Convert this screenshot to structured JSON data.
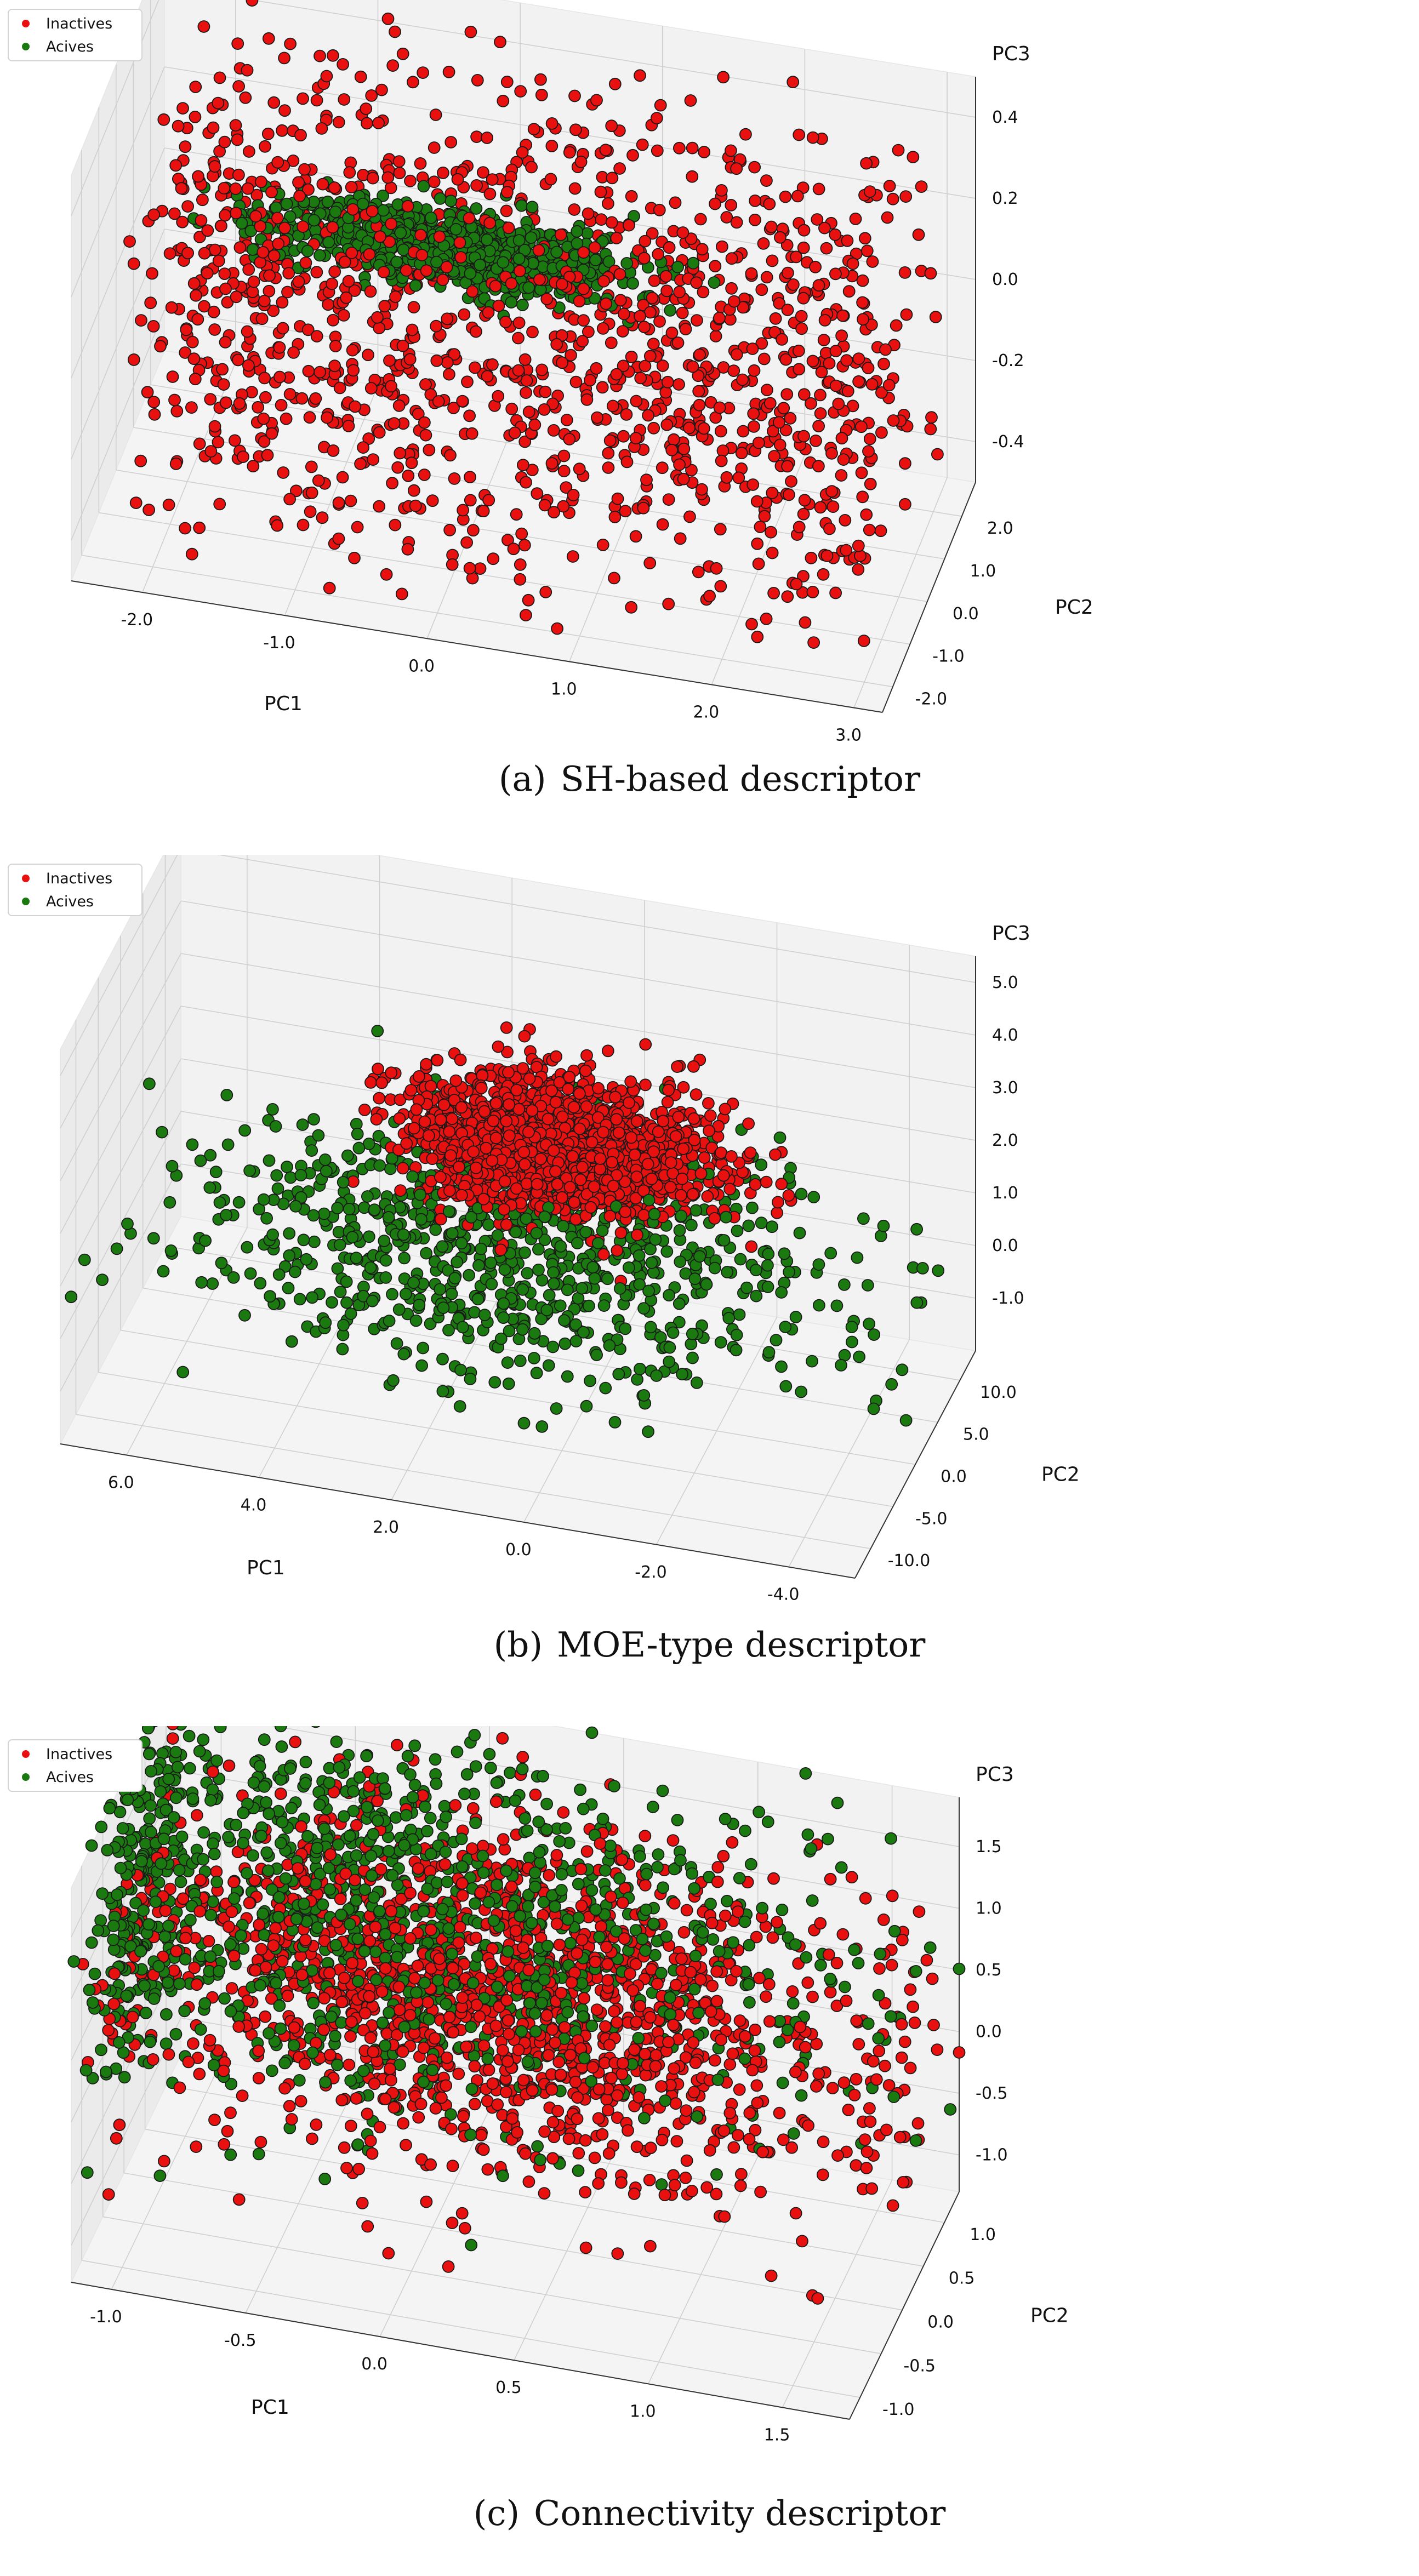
{
  "legend": {
    "inactive_label": "Inactives",
    "active_label": "Acives",
    "inactive_color": "#e8110f",
    "active_color": "#1a7a10"
  },
  "chart_data": [
    {
      "id": "a",
      "type": "scatter",
      "projection": "3d",
      "caption_tag": "(a)",
      "caption": "SH-based descriptor",
      "xlabel": "PC1",
      "ylabel": "PC2",
      "zlabel": "PC3",
      "xlim": [
        -2.5,
        3.2
      ],
      "ylim": [
        -2.6,
        2.8
      ],
      "zlim": [
        -0.5,
        0.5
      ],
      "xticks": [
        "-2.0",
        "-1.0",
        "0.0",
        "1.0",
        "2.0",
        "3.0"
      ],
      "yticks": [
        "-2.0",
        "-1.0",
        "0.0",
        "1.0",
        "2.0"
      ],
      "zticks": [
        "-0.4",
        "-0.2",
        "0.0",
        "0.2",
        "0.4"
      ],
      "legend_position": "top-left",
      "grid": true,
      "series": [
        {
          "name": "Inactives",
          "color": "#e8110f",
          "description": "uniform cloud",
          "n": 1400,
          "center": [
            0.4,
            0.1,
            0.0
          ],
          "spread": [
            2.6,
            2.5,
            0.45
          ]
        },
        {
          "name": "Acives",
          "color": "#1a7a10",
          "description": "narrow elongated band along PC1",
          "n": 800,
          "center": [
            -0.2,
            0.3,
            0.15
          ],
          "spread": [
            1.3,
            0.45,
            0.08
          ]
        }
      ]
    },
    {
      "id": "b",
      "type": "scatter",
      "projection": "3d",
      "caption_tag": "(b)",
      "caption": "MOE-type descriptor",
      "xlabel": "PC1",
      "ylabel": "PC2",
      "zlabel": "PC3",
      "xlim": [
        7.0,
        -5.0
      ],
      "ylim": [
        -13.5,
        13.5
      ],
      "zlim": [
        -2.0,
        5.5
      ],
      "xticks": [
        "6.0",
        "4.0",
        "2.0",
        "0.0",
        "-2.0",
        "-4.0"
      ],
      "yticks": [
        "-10.0",
        "-5.0",
        "0.0",
        "5.0",
        "10.0"
      ],
      "zticks": [
        "-1.0",
        "0.0",
        "1.0",
        "2.0",
        "3.0",
        "4.0",
        "5.0"
      ],
      "legend_position": "top-left",
      "grid": true,
      "series": [
        {
          "name": "Inactives",
          "color": "#e8110f",
          "description": "dense central slab plus wide scatter",
          "n": 1700,
          "center": [
            0.5,
            2.0,
            2.6
          ],
          "spread": [
            2.2,
            5.0,
            1.0
          ]
        },
        {
          "name": "Acives",
          "color": "#1a7a10",
          "description": "broad lower sheet around dense core",
          "n": 900,
          "center": [
            1.0,
            0.0,
            0.8
          ],
          "spread": [
            5.0,
            11.0,
            1.5
          ]
        }
      ]
    },
    {
      "id": "c",
      "type": "scatter",
      "projection": "3d",
      "caption_tag": "(c)",
      "caption": "Connectivity descriptor",
      "xlabel": "PC1",
      "ylabel": "PC2",
      "zlabel": "PC3",
      "xlim": [
        -1.15,
        1.75
      ],
      "ylim": [
        -1.25,
        1.35
      ],
      "zlim": [
        -1.3,
        1.9
      ],
      "xticks": [
        "-1.0",
        "-0.5",
        "0.0",
        "0.5",
        "1.0",
        "1.5"
      ],
      "yticks": [
        "-1.0",
        "-0.5",
        "0.0",
        "0.5",
        "1.0"
      ],
      "zticks": [
        "-1.0",
        "-0.5",
        "0.0",
        "0.5",
        "1.0",
        "1.5"
      ],
      "legend_position": "top-left",
      "grid": true,
      "series": [
        {
          "name": "Inactives",
          "color": "#e8110f",
          "description": "wide cloud with dense upper-left cluster",
          "n": 1600,
          "center": [
            0.2,
            0.2,
            0.5
          ],
          "spread": [
            1.4,
            1.2,
            1.1
          ]
        },
        {
          "name": "Acives",
          "color": "#1a7a10",
          "description": "dense cluster at left and wide lower spread",
          "n": 1300,
          "center": [
            -0.3,
            0.3,
            0.9
          ],
          "spread": [
            1.6,
            1.2,
            1.3
          ]
        }
      ]
    }
  ]
}
